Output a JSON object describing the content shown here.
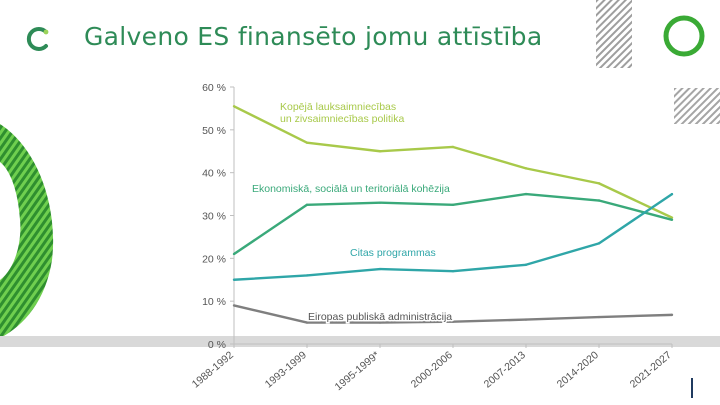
{
  "slide": {
    "title": "Galveno ES finansēto jomu attīstība"
  },
  "colors": {
    "title": "#2e8b57",
    "accent_green": "#3aaa35",
    "band": "#d9d9d9"
  },
  "chart_data": {
    "type": "line",
    "title": "",
    "xlabel": "",
    "ylabel": "",
    "ylim": [
      0,
      60
    ],
    "yticks": [
      "0 %",
      "10 %",
      "20 %",
      "30 %",
      "40 %",
      "50 %",
      "60 %"
    ],
    "categories": [
      "1988-1992",
      "1993-1999",
      "1995-1999*",
      "2000-2006",
      "2007-2013",
      "2014-2020",
      "2021-2027"
    ],
    "series": [
      {
        "name": "Kopējā lauksaimniecības un zivsaimniecības politika",
        "label_lines": [
          "Kopējā lauksaimniecības",
          "un zivsaimniecības politika"
        ],
        "color": "#a8c94a",
        "values": [
          55.5,
          47,
          45,
          46,
          41,
          37.5,
          29.5
        ]
      },
      {
        "name": "Ekonomiskā, sociālā un teritoriālā kohēzija",
        "label_lines": [
          "Ekonomiskā, sociālā un teritoriālā kohēzija"
        ],
        "color": "#3aa97a",
        "values": [
          21,
          32.5,
          33,
          32.5,
          35,
          33.5,
          29
        ]
      },
      {
        "name": "Citas programmas",
        "label_lines": [
          "Citas programmas"
        ],
        "color": "#2fa6a8",
        "values": [
          15,
          16,
          17.5,
          17,
          18.5,
          23.5,
          35
        ]
      },
      {
        "name": "Eiropas publiskā administrācija",
        "label_lines": [
          "Eiropas publiskā administrācija"
        ],
        "color": "#7f7f7f",
        "values": [
          9,
          5,
          5,
          5.2,
          5.7,
          6.3,
          6.8
        ]
      }
    ]
  }
}
